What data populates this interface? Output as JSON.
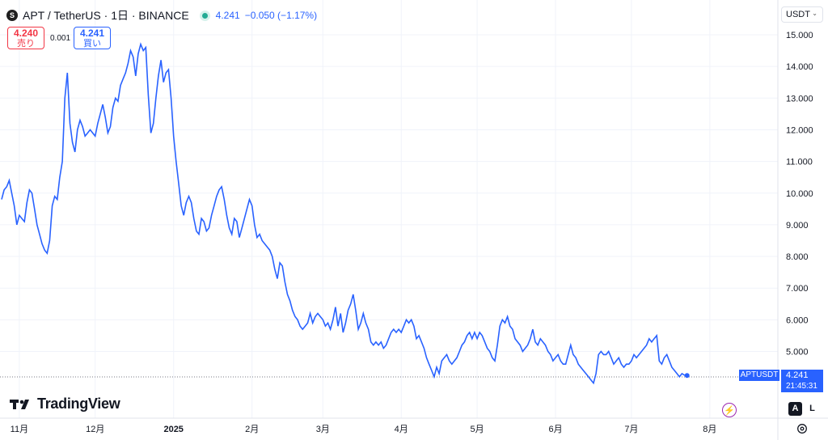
{
  "header": {
    "icon_letter": "S",
    "title": "APT / TetherUS · 1日 · BINANCE",
    "last_price": "4.241",
    "change": "−0.050 (−1.17%)"
  },
  "trade": {
    "sell_price": "4.240",
    "sell_label": "売り",
    "spread": "0.001",
    "buy_price": "4.241",
    "buy_label": "買い"
  },
  "currency": "USDT",
  "logo_text": "TradingView",
  "price_badge": {
    "symbol": "APTUSDT",
    "price": "4.241",
    "countdown": "21:45:31"
  },
  "buttons": {
    "auto": "A",
    "log": "L"
  },
  "colors": {
    "line": "#2962ff",
    "sell": "#f23645",
    "buy": "#2962ff"
  },
  "chart_data": {
    "type": "line",
    "y_ticks": [
      "15.000",
      "14.000",
      "13.000",
      "12.000",
      "11.000",
      "10.000",
      "9.000",
      "8.000",
      "7.000",
      "6.000",
      "5.000"
    ],
    "ylim": [
      4.0,
      15.3
    ],
    "x_ticks": [
      {
        "label": "11月",
        "idx": 7
      },
      {
        "label": "12月",
        "idx": 37
      },
      {
        "label": "2025",
        "idx": 68
      },
      {
        "label": "2月",
        "idx": 99
      },
      {
        "label": "3月",
        "idx": 127
      },
      {
        "label": "4月",
        "idx": 158
      },
      {
        "label": "5月",
        "idx": 188
      },
      {
        "label": "6月",
        "idx": 219
      },
      {
        "label": "7月",
        "idx": 249
      },
      {
        "label": "8月",
        "idx": 280
      }
    ],
    "x_count": 290,
    "current_price": 4.241,
    "series": [
      {
        "values": [
          9.8,
          10.1,
          10.2,
          10.4,
          10.0,
          9.6,
          9.0,
          9.3,
          9.2,
          9.1,
          9.7,
          10.1,
          10.0,
          9.5,
          9.0,
          8.7,
          8.4,
          8.2,
          8.1,
          8.5,
          9.6,
          9.9,
          9.8,
          10.5,
          11.0,
          13.0,
          13.8,
          12.2,
          11.6,
          11.3,
          12.0,
          12.3,
          12.1,
          11.8,
          11.9,
          12.0,
          11.9,
          11.8,
          12.2,
          12.5,
          12.8,
          12.4,
          11.9,
          12.1,
          12.7,
          13.0,
          12.9,
          13.4,
          13.6,
          13.8,
          14.1,
          14.5,
          14.3,
          13.7,
          14.4,
          14.7,
          14.5,
          14.6,
          13.1,
          11.9,
          12.2,
          13.0,
          13.7,
          14.2,
          13.5,
          13.8,
          13.9,
          13.0,
          11.8,
          11.0,
          10.3,
          9.6,
          9.3,
          9.7,
          9.9,
          9.7,
          9.2,
          8.8,
          8.7,
          9.2,
          9.1,
          8.8,
          8.9,
          9.3,
          9.6,
          9.9,
          10.1,
          10.2,
          9.8,
          9.3,
          8.9,
          8.7,
          9.2,
          9.1,
          8.6,
          8.9,
          9.2,
          9.5,
          9.8,
          9.6,
          9.0,
          8.6,
          8.7,
          8.5,
          8.4,
          8.3,
          8.2,
          8.0,
          7.6,
          7.3,
          7.8,
          7.7,
          7.2,
          6.8,
          6.6,
          6.3,
          6.1,
          6.0,
          5.8,
          5.7,
          5.8,
          5.9,
          6.2,
          5.9,
          6.1,
          6.2,
          6.1,
          6.0,
          5.8,
          5.9,
          5.7,
          6.0,
          6.4,
          5.8,
          6.2,
          5.6,
          5.9,
          6.3,
          6.5,
          6.8,
          6.3,
          5.7,
          5.9,
          6.2,
          5.9,
          5.7,
          5.3,
          5.2,
          5.3,
          5.2,
          5.3,
          5.1,
          5.2,
          5.4,
          5.6,
          5.7,
          5.6,
          5.7,
          5.6,
          5.8,
          6.0,
          5.9,
          6.0,
          5.8,
          5.4,
          5.5,
          5.3,
          5.1,
          4.8,
          4.6,
          4.4,
          4.2,
          4.5,
          4.3,
          4.7,
          4.8,
          4.9,
          4.7,
          4.6,
          4.7,
          4.8,
          5.0,
          5.2,
          5.3,
          5.5,
          5.6,
          5.4,
          5.6,
          5.4,
          5.6,
          5.5,
          5.3,
          5.1,
          5.0,
          4.8,
          4.7,
          5.2,
          5.8,
          6.0,
          5.9,
          6.1,
          5.8,
          5.7,
          5.4,
          5.3,
          5.2,
          5.0,
          5.1,
          5.2,
          5.4,
          5.7,
          5.3,
          5.2,
          5.4,
          5.3,
          5.2,
          5.0,
          4.9,
          4.7,
          4.8,
          4.9,
          4.7,
          4.6,
          4.6,
          4.9,
          5.2,
          4.9,
          4.8,
          4.6,
          4.5,
          4.4,
          4.3,
          4.2,
          4.1,
          4.0,
          4.3,
          4.9,
          5.0,
          4.9,
          4.9,
          5.0,
          4.8,
          4.6,
          4.7,
          4.8,
          4.6,
          4.5,
          4.6,
          4.6,
          4.7,
          4.9,
          4.8,
          4.9,
          5.0,
          5.1,
          5.2,
          5.4,
          5.3,
          5.4,
          5.5,
          4.7,
          4.6,
          4.8,
          4.9,
          4.7,
          4.5,
          4.4,
          4.3,
          4.2,
          4.3,
          4.25,
          4.241
        ]
      }
    ]
  }
}
